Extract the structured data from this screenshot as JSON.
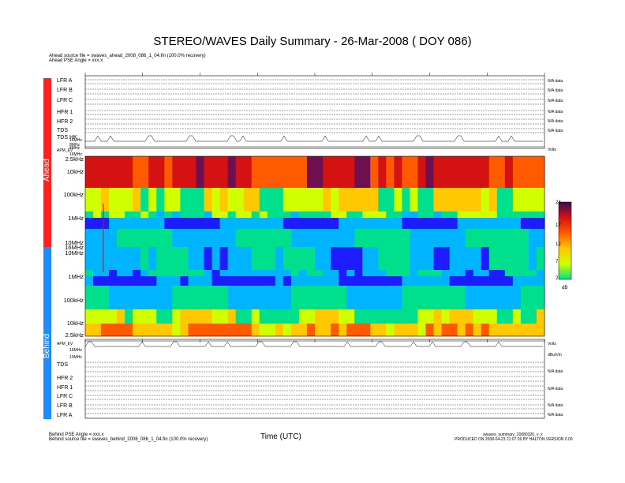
{
  "chart_data": {
    "type": "heatmap",
    "title": "STEREO/WAVES Daily Summary - 26-Mar-2008 ( DOY 086)",
    "xlabel": "Time (UTC)",
    "header_lines": [
      "Ahead source file = swaves_ahead_2008_086_1_04.fin (100.0% recovery)",
      "Ahead PSE Angle = xxx.x"
    ],
    "footer_left": [
      "Behind PSE Angle = xxx.x",
      "Behind source file = swaves_behind_2008_086_1_04.fin (100.0% recovery)"
    ],
    "footer_right": [
      "swaves_summary_20080326_v_x",
      "PRODUCED ON 2008-04-23 21:07:26 BY HALTON VERSION 0.00"
    ],
    "sidebar": {
      "ahead": "Ahead",
      "behind": "Behind"
    },
    "ahead_rows": [
      "LFR A",
      "LFR B",
      "LFR C",
      "HFR 1",
      "HFR 2",
      "TDS",
      "TDS HK"
    ],
    "behind_rows": [
      "TDS",
      "HFR 2",
      "HFR 1",
      "LFR C",
      "LFR B",
      "LFR A"
    ],
    "ahead_freq_labels": [
      "2.5kHz",
      "10kHz",
      "100kHz",
      "1MHz",
      "10MHz"
    ],
    "behind_freq_labels": [
      "16MHz",
      "10MHz",
      "1MHz",
      "100kHz",
      "10kHz",
      "2.5kHz"
    ],
    "apm_labels": {
      "ahead_small": [
        "16MHz",
        "8MHz",
        "4MHz",
        "APM_EV",
        "16MHz"
      ],
      "behind_small": [
        "APM_EV",
        "16MHz",
        "10MHz"
      ]
    },
    "colorbar": {
      "ticks": [
        "24",
        "17",
        "12",
        "7",
        "2"
      ],
      "unit": "dB"
    },
    "colormap": [
      "#1c1cff",
      "#00b4ff",
      "#00e08c",
      "#cfff00",
      "#ffc800",
      "#ff5a00",
      "#d41212",
      "#6e1050",
      "#3c0a50"
    ],
    "right_labels_ahead": [
      "N/A data",
      "N/A data",
      "N/A data",
      "N/A data",
      "N/A data",
      "N/A data",
      "Volts"
    ],
    "right_labels_behind": [
      "Volts",
      "dBuV/m",
      "N/A data",
      "N/A data",
      "N/A data",
      "N/A data"
    ],
    "ahead_bands": [
      {
        "from": 2.5,
        "to": 30,
        "level": 19
      },
      {
        "from": 30,
        "to": 100,
        "level": 11
      },
      {
        "from": 100,
        "to": 450,
        "level": 8
      },
      {
        "from": 450,
        "to": 700,
        "level": 3
      },
      {
        "from": 700,
        "to": 1200,
        "level": 6
      },
      {
        "from": 1200,
        "to": 10000,
        "level": 5
      }
    ],
    "behind_bands": [
      {
        "from": 16000,
        "to": 10000,
        "level": 5
      },
      {
        "from": 10000,
        "to": 1200,
        "level": 5
      },
      {
        "from": 1200,
        "to": 700,
        "level": 2
      },
      {
        "from": 700,
        "to": 100,
        "level": 6
      },
      {
        "from": 100,
        "to": 12,
        "level": 10
      },
      {
        "from": 12,
        "to": 2.5,
        "level": 14
      }
    ]
  }
}
